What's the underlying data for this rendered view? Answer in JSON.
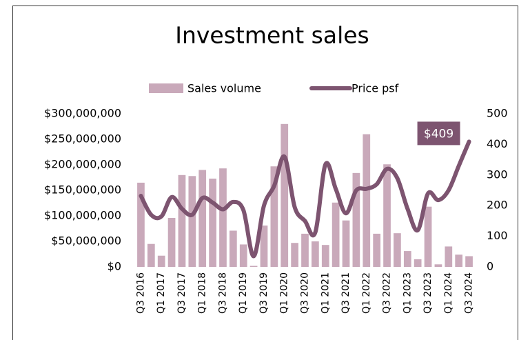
{
  "chart_data": {
    "type": "bar_line",
    "title": "Investment sales",
    "categories": [
      "Q3 2016",
      null,
      "Q1 2017",
      null,
      "Q3 2017",
      null,
      "Q1 2018",
      null,
      "Q3 2018",
      null,
      "Q1 2019",
      null,
      "Q3 2019",
      null,
      "Q1 2020",
      null,
      "Q3 2020",
      null,
      "Q1 2021",
      null,
      "Q3 2021",
      null,
      "Q1 2022",
      null,
      "Q3 2022",
      null,
      "Q1 2023",
      null,
      "Q3 2023",
      null,
      "Q1 2024",
      null,
      "Q3 2024"
    ],
    "series": [
      {
        "name": "Sales volume",
        "type": "bar",
        "color": "#c9a9ba",
        "values": [
          165000000,
          45000000,
          22000000,
          96000000,
          180000000,
          178000000,
          190000000,
          173000000,
          193000000,
          71000000,
          44000000,
          2000000,
          81000000,
          197000000,
          280000000,
          47000000,
          65000000,
          50000000,
          43000000,
          126000000,
          91000000,
          184000000,
          260000000,
          65000000,
          201000000,
          66000000,
          31000000,
          15000000,
          118000000,
          5000000,
          40000000,
          24000000,
          21000000
        ]
      },
      {
        "name": "Price psf",
        "type": "line",
        "axis": "y2",
        "color": "#7d5470",
        "values": [
          232,
          170,
          165,
          228,
          190,
          170,
          225,
          210,
          188,
          212,
          185,
          35,
          200,
          265,
          360,
          195,
          150,
          112,
          335,
          255,
          175,
          250,
          255,
          270,
          320,
          290,
          190,
          120,
          240,
          218,
          250,
          330,
          409
        ],
        "value_labels": [
          null,
          null,
          null,
          null,
          null,
          null,
          null,
          null,
          null,
          null,
          null,
          null,
          null,
          null,
          null,
          null,
          null,
          null,
          null,
          null,
          null,
          null,
          null,
          null,
          null,
          null,
          null,
          null,
          null,
          null,
          null,
          null,
          "$409"
        ]
      }
    ],
    "ylim": [
      0,
      300000000
    ],
    "yticks": [
      {
        "value": 0,
        "label": "$0"
      },
      {
        "value": 50000000,
        "label": "$50,000,000"
      },
      {
        "value": 100000000,
        "label": "$100,000,000"
      },
      {
        "value": 150000000,
        "label": "$150,000,000"
      },
      {
        "value": 200000000,
        "label": "$200,000,000"
      },
      {
        "value": 250000000,
        "label": "$250,000,000"
      },
      {
        "value": 300000000,
        "label": "$300,000,000"
      }
    ],
    "y2lim": [
      0,
      500
    ],
    "y2ticks": [
      0,
      100,
      200,
      300,
      400,
      500
    ],
    "legend": "top"
  }
}
